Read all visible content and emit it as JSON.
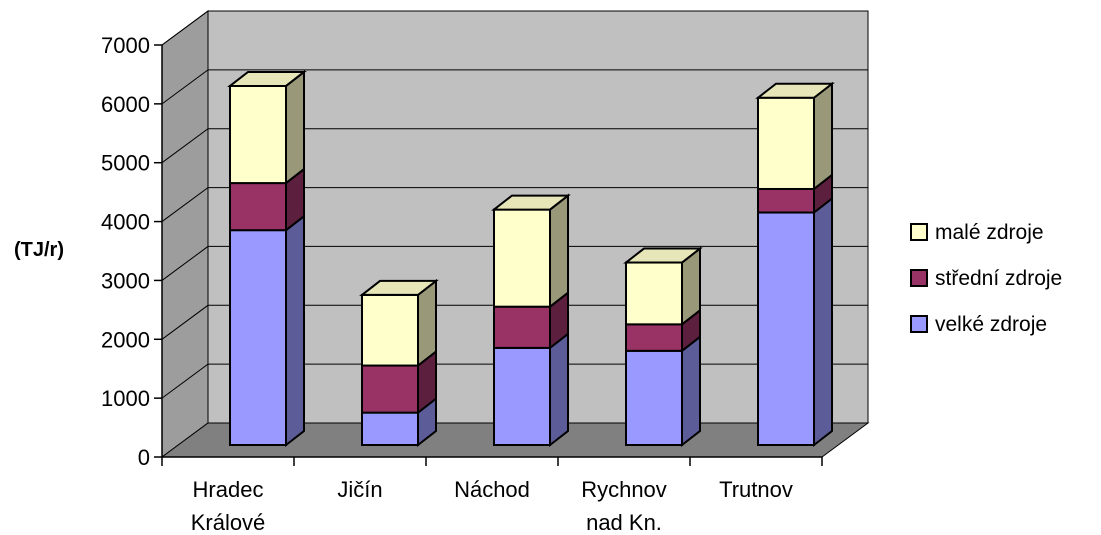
{
  "chart_data": {
    "type": "bar",
    "stacked": true,
    "three_d": true,
    "title": "",
    "xlabel": "",
    "ylabel": "(TJ/r)",
    "ylim": [
      0,
      7000
    ],
    "yticks": [
      "0",
      "1000",
      "2000",
      "3000",
      "4000",
      "5000",
      "6000",
      "7000"
    ],
    "grid": true,
    "legend_position": "right",
    "categories": [
      [
        "Hradec",
        "Králové"
      ],
      [
        "Jičín"
      ],
      [
        "Náchod"
      ],
      [
        "Rychnov",
        "nad Kn."
      ],
      [
        "Trutnov"
      ]
    ],
    "series": [
      {
        "name": "velké zdroje",
        "values": [
          3650,
          550,
          1650,
          1600,
          3950
        ],
        "color": "#9999ff"
      },
      {
        "name": "střední zdroje",
        "values": [
          800,
          800,
          700,
          450,
          400
        ],
        "color": "#993366"
      },
      {
        "name": "malé zdroje",
        "values": [
          1650,
          1200,
          1650,
          1050,
          1550
        ],
        "color": "#ffffcc"
      }
    ],
    "legend_order": [
      "malé zdroje",
      "střední zdroje",
      "velké zdroje"
    ],
    "colors": {
      "wall": "#c0c0c0",
      "floor": "#808080",
      "grid": "#000000",
      "edge": "#000000"
    }
  }
}
